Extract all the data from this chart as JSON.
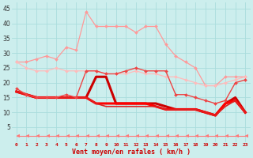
{
  "xlabel": "Vent moyen/en rafales ( km/h )",
  "x": [
    0,
    1,
    2,
    3,
    4,
    5,
    6,
    7,
    8,
    9,
    10,
    11,
    12,
    13,
    14,
    15,
    16,
    17,
    18,
    19,
    20,
    21,
    22,
    23
  ],
  "ylim": [
    0,
    47
  ],
  "xlim": [
    -0.5,
    23.5
  ],
  "yticks": [
    5,
    10,
    15,
    20,
    25,
    30,
    35,
    40,
    45
  ],
  "bg_color": "#cceeed",
  "grid_color": "#aadddd",
  "lines": [
    {
      "y": [
        27,
        27,
        28,
        29,
        28,
        32,
        31,
        44,
        39,
        39,
        39,
        39,
        37,
        39,
        39,
        33,
        29,
        27,
        25,
        19,
        19,
        22,
        22,
        22
      ],
      "color": "#ff9999",
      "lw": 0.9,
      "marker": "D",
      "ms": 2.0
    },
    {
      "y": [
        27,
        25,
        24,
        24,
        25,
        24,
        24,
        24,
        24,
        23,
        23,
        23,
        24,
        23,
        23,
        22,
        22,
        21,
        20,
        19,
        19,
        20,
        21,
        22
      ],
      "color": "#ffbbbb",
      "lw": 0.9,
      "marker": "D",
      "ms": 2.0
    },
    {
      "y": [
        18,
        16,
        15,
        15,
        15,
        16,
        15,
        24,
        24,
        23,
        23,
        24,
        25,
        24,
        24,
        24,
        16,
        16,
        15,
        14,
        13,
        14,
        20,
        21
      ],
      "color": "#ee4444",
      "lw": 1.0,
      "marker": "D",
      "ms": 2.0
    },
    {
      "y": [
        17,
        16,
        15,
        15,
        15,
        15,
        15,
        15,
        22,
        22,
        13,
        13,
        13,
        13,
        13,
        12,
        11,
        11,
        11,
        10,
        9,
        13,
        15,
        10
      ],
      "color": "#cc0000",
      "lw": 2.2,
      "marker": null,
      "ms": 0
    },
    {
      "y": [
        17,
        16,
        15,
        15,
        15,
        15,
        15,
        15,
        13,
        13,
        13,
        13,
        13,
        13,
        12,
        11,
        11,
        11,
        11,
        10,
        9,
        13,
        14,
        10
      ],
      "color": "#ff0000",
      "lw": 2.2,
      "marker": null,
      "ms": 0
    },
    {
      "y": [
        17,
        16,
        15,
        15,
        15,
        15,
        15,
        15,
        13,
        12,
        12,
        12,
        12,
        12,
        12,
        11,
        11,
        11,
        11,
        10,
        9,
        12,
        14,
        10
      ],
      "color": "#dd2222",
      "lw": 1.2,
      "marker": null,
      "ms": 0
    },
    {
      "y": [
        2,
        2,
        2,
        2,
        2,
        2,
        2,
        2,
        2,
        2,
        2,
        2,
        2,
        2,
        2,
        2,
        2,
        2,
        2,
        2,
        2,
        2,
        2,
        2
      ],
      "color": "#ff7777",
      "lw": 0.8,
      "marker": 4,
      "ms": 3.5
    }
  ]
}
